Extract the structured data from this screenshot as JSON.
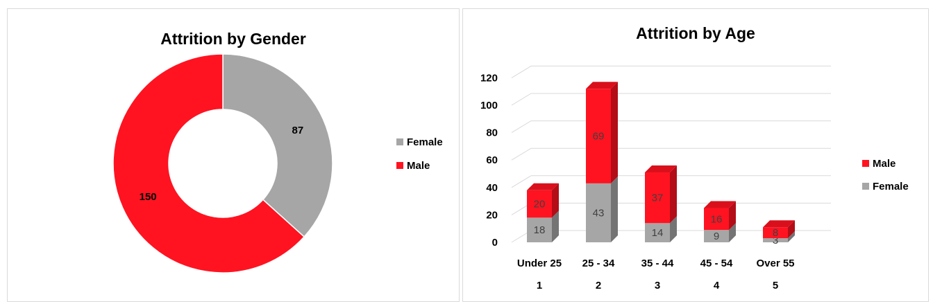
{
  "chart_data": [
    {
      "type": "pie",
      "title": "Attrition by Gender",
      "slices": [
        {
          "label": "Female",
          "value": 87,
          "color": "#a6a6a6"
        },
        {
          "label": "Male",
          "value": 150,
          "color": "#ff1321"
        }
      ],
      "legend": "right"
    },
    {
      "type": "bar",
      "stacked": true,
      "three_d": true,
      "title": "Attrition by Age",
      "categories": [
        "Under 25",
        "25 - 34",
        "35 - 44",
        "45 - 54",
        "Over 55"
      ],
      "category_numbers": [
        "1",
        "2",
        "3",
        "4",
        "5"
      ],
      "series": [
        {
          "name": "Female",
          "values": [
            18,
            43,
            14,
            9,
            3
          ],
          "color": "#a6a6a6"
        },
        {
          "name": "Male",
          "values": [
            20,
            69,
            37,
            16,
            8
          ],
          "color": "#ff1321"
        }
      ],
      "yticks": [
        "0",
        "20",
        "40",
        "60",
        "80",
        "100",
        "120"
      ],
      "ylim": [
        0,
        120
      ],
      "grid": true,
      "legend": "right"
    }
  ]
}
